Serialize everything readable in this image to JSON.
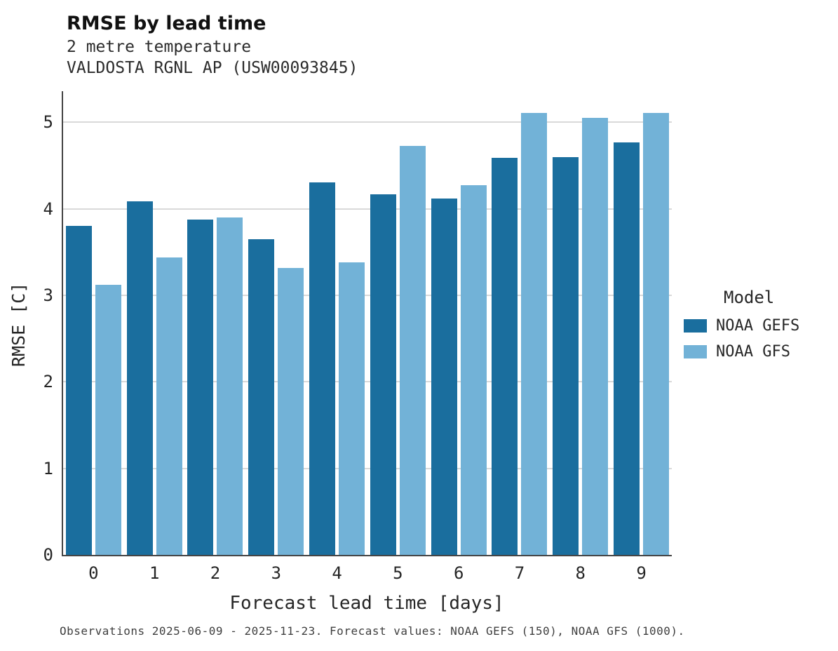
{
  "header": {
    "title": "RMSE by lead time",
    "subtitle1": "2 metre temperature",
    "subtitle2": "VALDOSTA RGNL AP (USW00093845)"
  },
  "footnote": "Observations 2025-06-09 - 2025-11-23. Forecast values: NOAA GEFS (150), NOAA GFS (1000).",
  "legend": {
    "title": "Model",
    "entries": [
      {
        "label": "NOAA GEFS",
        "color": "#1a6e9e"
      },
      {
        "label": "NOAA GFS",
        "color": "#72b2d7"
      }
    ]
  },
  "colors": {
    "gefs": "#1a6e9e",
    "gfs": "#72b2d7",
    "gridline": "#d9d9d9",
    "spine": "#444444"
  },
  "chart_data": {
    "type": "bar",
    "title": "RMSE by lead time",
    "subtitle": "2 metre temperature — VALDOSTA RGNL AP (USW00093845)",
    "categories": [
      "0",
      "1",
      "2",
      "3",
      "4",
      "5",
      "6",
      "7",
      "8",
      "9"
    ],
    "series": [
      {
        "name": "NOAA GEFS",
        "color": "#1a6e9e",
        "values": [
          3.8,
          4.09,
          3.88,
          3.65,
          4.31,
          4.17,
          4.12,
          4.59,
          4.6,
          4.77
        ]
      },
      {
        "name": "NOAA GFS",
        "color": "#72b2d7",
        "values": [
          3.12,
          3.44,
          3.9,
          3.32,
          3.38,
          4.73,
          4.27,
          5.11,
          5.05,
          5.11
        ]
      }
    ],
    "xlabel": "Forecast lead time [days]",
    "ylabel": "RMSE [C]",
    "ylim": [
      0,
      5.36
    ],
    "yticks": [
      0,
      1,
      2,
      3,
      4,
      5
    ],
    "grid": true,
    "legend_position": "right"
  }
}
